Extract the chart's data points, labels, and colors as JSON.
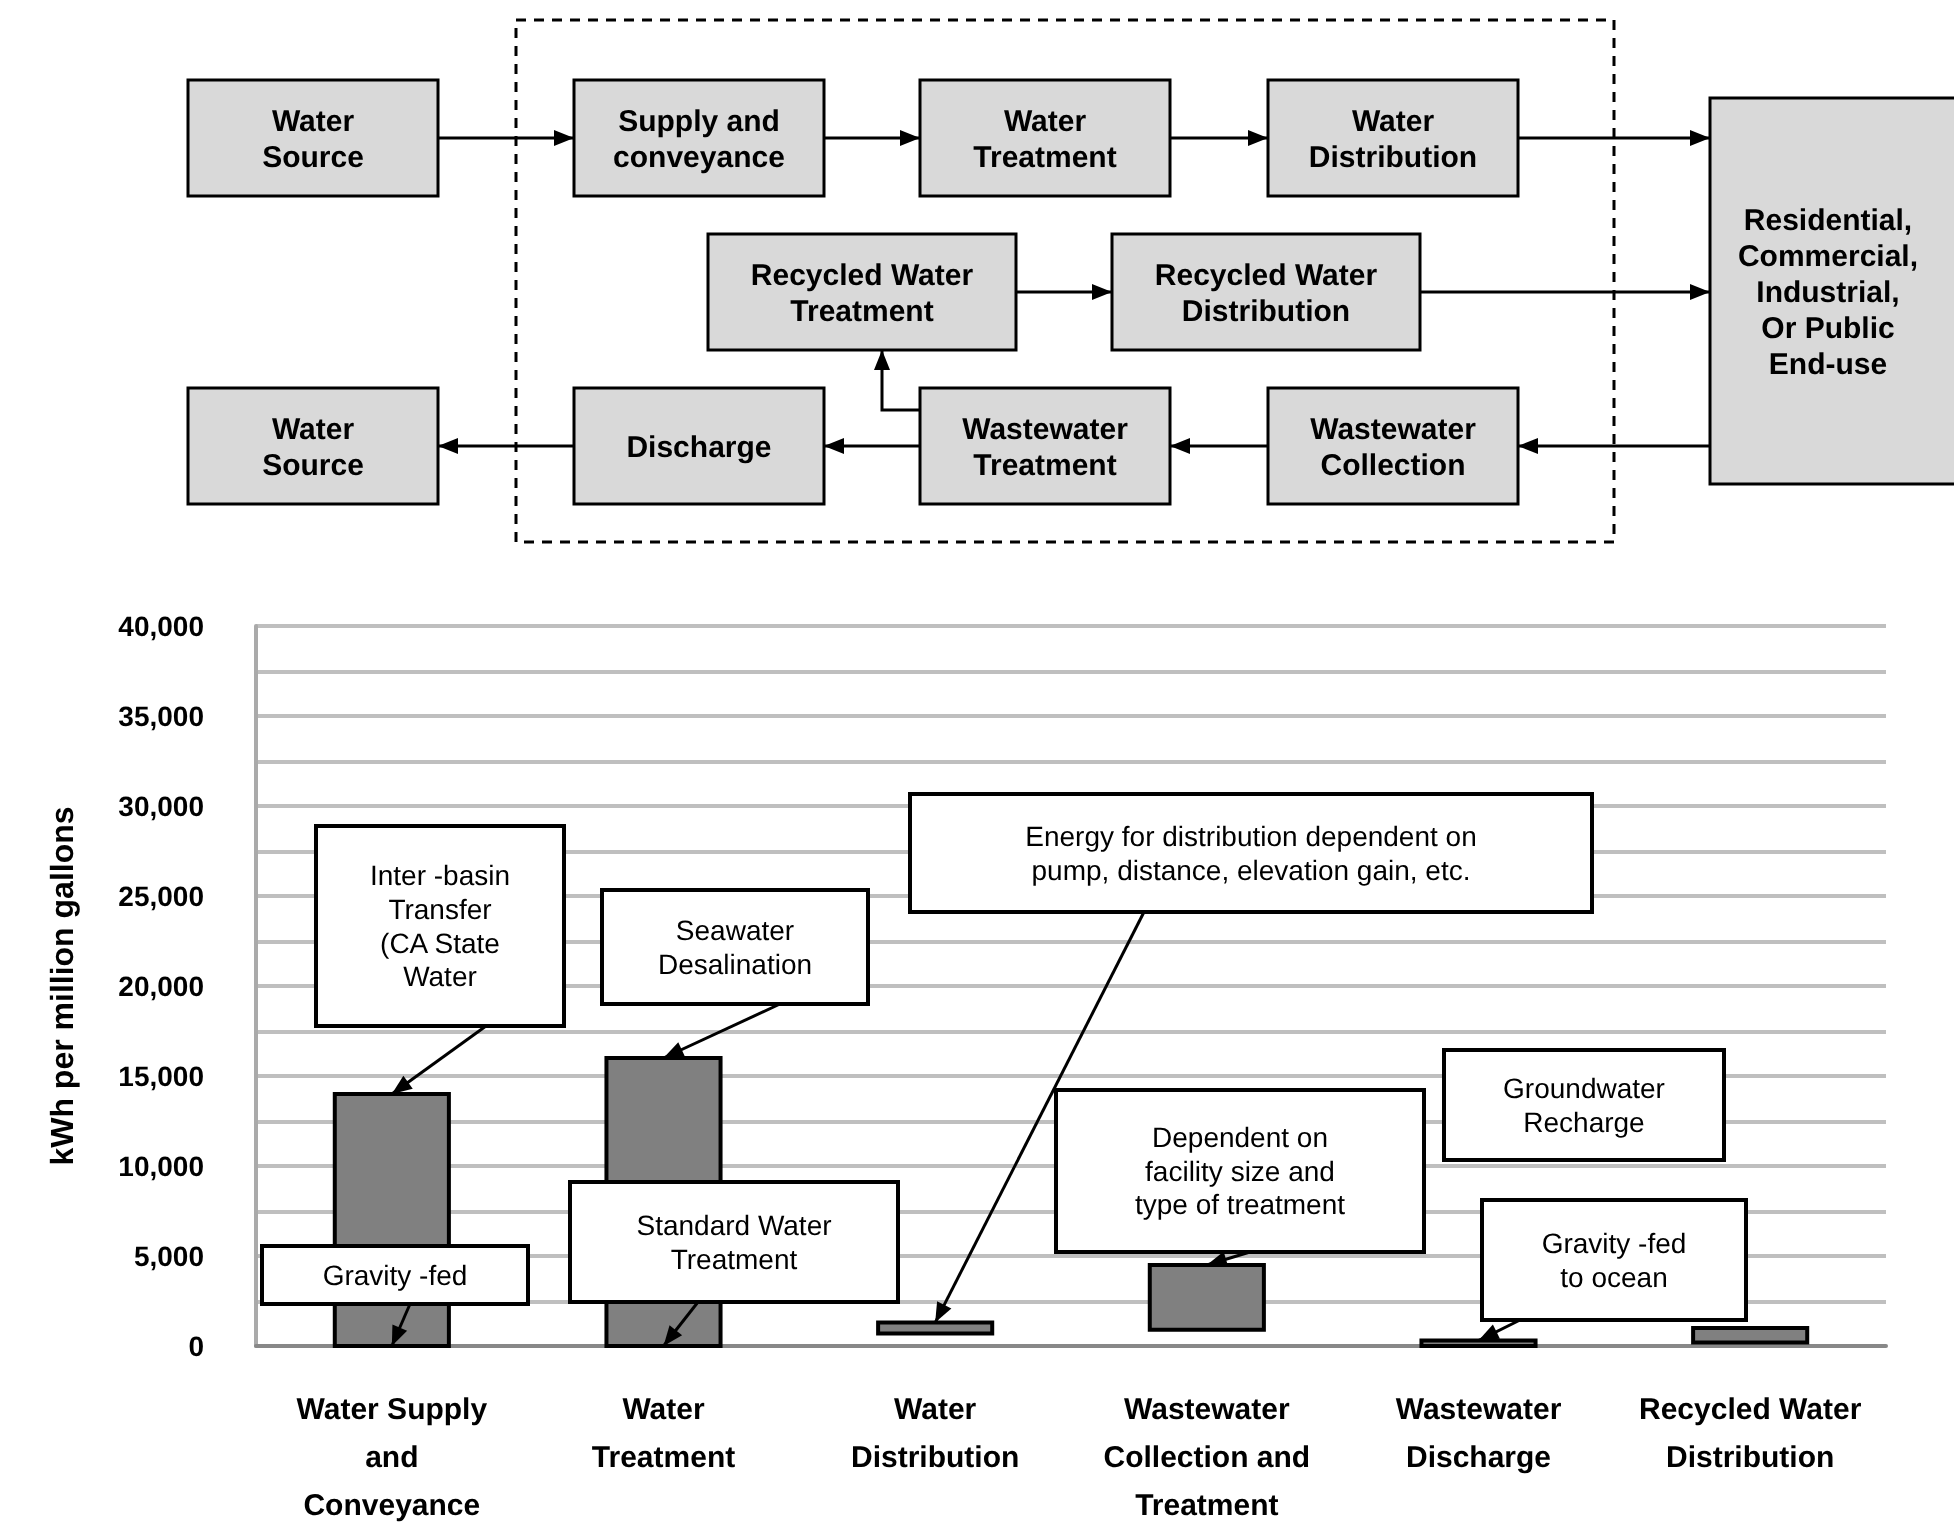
{
  "chart_data": [
    {
      "type": "other",
      "annotations": [
        "Water\nSource",
        "Supply and\nconveyance",
        "Water\nTreatment",
        "Water\nDistribution",
        "Residential,\nCommercial,\nIndustrial,\nOr Public\nEnd-use",
        "Recycled Water\nTreatment",
        "Recycled Water\nDistribution",
        "Water\nSource",
        "Discharge",
        "Wastewater\nTreatment",
        "Wastewater\nCollection"
      ]
    },
    {
      "type": "bar",
      "ylabel": "kWh per million gallons",
      "categories": [
        "Water Supply\nand\nConveyance",
        "Water\nTreatment",
        "Water\nDistribution",
        "Wastewater\nCollection and\nTreatment",
        "Wastewater\nDischarge",
        "Recycled Water\nDistribution"
      ],
      "values": [
        14000,
        16000,
        600,
        3600,
        300,
        800
      ],
      "base": [
        0,
        0,
        700,
        900,
        0,
        200
      ],
      "color": "#808080",
      "ylim": [
        0,
        40000
      ],
      "yticks": [
        {
          "value": 0,
          "label": "0"
        },
        {
          "value": 2500,
          "label": null
        },
        {
          "value": 5000,
          "label": "5,000"
        },
        {
          "value": 7500,
          "label": null
        },
        {
          "value": 10000,
          "label": "10,000"
        },
        {
          "value": 12500,
          "label": null
        },
        {
          "value": 15000,
          "label": "15,000"
        },
        {
          "value": 17500,
          "label": null
        },
        {
          "value": 20000,
          "label": "20,000"
        },
        {
          "value": 22500,
          "label": null
        },
        {
          "value": 25000,
          "label": "25,000"
        },
        {
          "value": 27500,
          "label": null
        },
        {
          "value": 30000,
          "label": "30,000"
        },
        {
          "value": 32500,
          "label": null
        },
        {
          "value": 35000,
          "label": "35,000"
        },
        {
          "value": 37500,
          "label": null
        },
        {
          "value": 40000,
          "label": "40,000"
        }
      ],
      "grid": "y",
      "annotations": [
        {
          "text": "Inter -basin\nTransfer\n(CA State\nWater",
          "x": "Water Supply\nand\nConveyance",
          "y": 14000
        },
        {
          "text": "Seawater\nDesalination",
          "x": "Water\nTreatment",
          "y": 16000
        },
        {
          "text": "Gravity -fed",
          "x": "Water Supply\nand\nConveyance",
          "y": 0
        },
        {
          "text": "Standard Water\nTreatment",
          "x": "Water\nTreatment",
          "y": 0
        },
        {
          "text": "Energy for distribution dependent on\npump, distance, elevation gain, etc.",
          "x": "Water\nDistribution",
          "y": 1300
        },
        {
          "text": "Dependent on\nfacility size and\ntype of treatment",
          "x": "Wastewater\nCollection and\nTreatment",
          "y": 4500
        },
        "Groundwater\nRecharge",
        {
          "text": "Gravity -fed\nto ocean",
          "x": "Wastewater\nDischarge",
          "y": 300
        }
      ]
    }
  ]
}
